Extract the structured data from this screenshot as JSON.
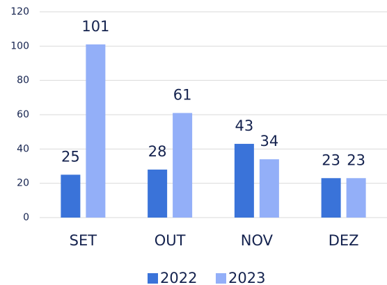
{
  "chart_data": {
    "type": "bar",
    "categories": [
      "SET",
      "OUT",
      "NOV",
      "DEZ"
    ],
    "series": [
      {
        "name": "2022",
        "color": "#3a73d9",
        "values": [
          25,
          28,
          43,
          23
        ]
      },
      {
        "name": "2023",
        "color": "#93aff8",
        "values": [
          101,
          61,
          34,
          23
        ]
      }
    ],
    "ylim": [
      0,
      120
    ],
    "yticks": [
      0,
      20,
      40,
      60,
      80,
      100,
      120
    ],
    "grid": true,
    "legend": "bottom"
  }
}
